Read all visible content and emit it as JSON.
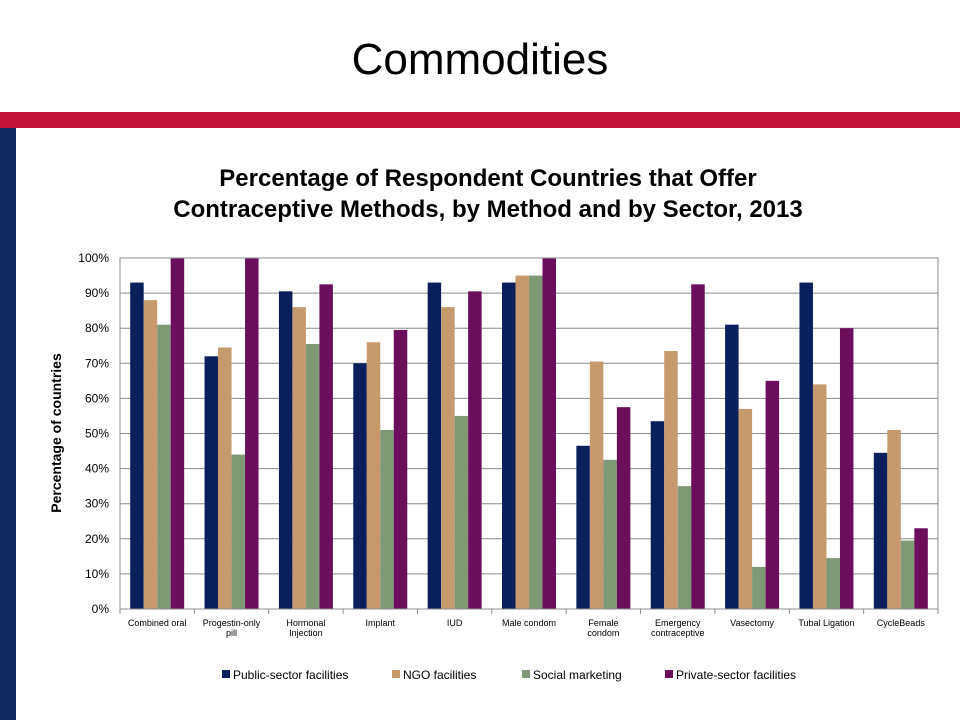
{
  "slide": {
    "title": "Commodities"
  },
  "chart_data": {
    "type": "bar",
    "title_lines": [
      "Percentage of Respondent Countries that Offer",
      "Contraceptive Methods, by Method and by Sector, 2013"
    ],
    "xlabel": "",
    "ylabel": "Percentage of countries",
    "ylim": [
      0,
      100
    ],
    "y_ticks": [
      "0%",
      "10%",
      "20%",
      "30%",
      "40%",
      "50%",
      "60%",
      "70%",
      "80%",
      "90%",
      "100%"
    ],
    "grid": true,
    "legend_position": "bottom",
    "categories": [
      [
        "Combined oral"
      ],
      [
        "Progestin-only",
        "pill"
      ],
      [
        "Hormonal",
        "Injection"
      ],
      [
        "Implant"
      ],
      [
        "IUD"
      ],
      [
        "Male condom"
      ],
      [
        "Female",
        "condom"
      ],
      [
        "Emergency",
        "contraceptive"
      ],
      [
        "Vasectomy"
      ],
      [
        "Tubal Ligation"
      ],
      [
        "CycleBeads"
      ]
    ],
    "series": [
      {
        "name": "Public-sector facilities",
        "color": "#0a1f5c",
        "values": [
          93,
          72,
          90.5,
          70,
          93,
          93,
          46.5,
          53.5,
          81,
          93,
          44.5
        ]
      },
      {
        "name": "NGO facilities",
        "color": "#c69a6d",
        "values": [
          88,
          74.5,
          86,
          76,
          86,
          95,
          70.5,
          73.5,
          57,
          64,
          51
        ]
      },
      {
        "name": "Social marketing",
        "color": "#7f9876",
        "values": [
          81,
          44,
          75.5,
          51,
          55,
          95,
          42.5,
          35,
          12,
          14.5,
          19.5
        ]
      },
      {
        "name": "Private-sector facilities",
        "color": "#6b0f5c",
        "values": [
          100,
          100,
          92.5,
          79.5,
          90.5,
          100,
          57.5,
          92.5,
          65,
          80,
          23
        ]
      }
    ]
  }
}
